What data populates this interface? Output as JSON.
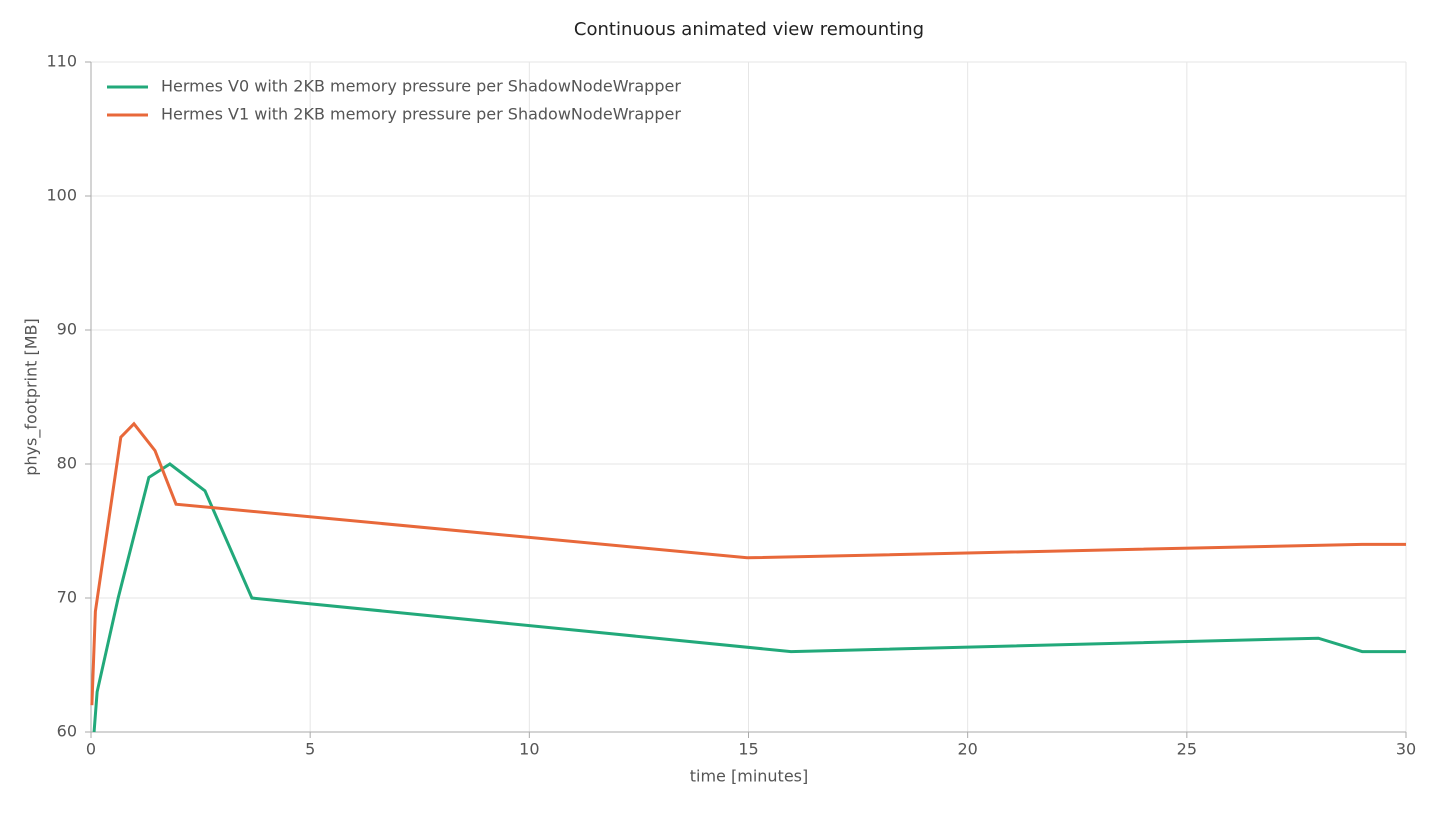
{
  "chart_data": {
    "type": "line",
    "title": "Continuous animated view remounting",
    "xlabel": "time [minutes]",
    "ylabel": "phys_footprint [MB]",
    "xlim": [
      0,
      30
    ],
    "xticks": [
      0,
      5,
      10,
      15,
      20,
      25,
      30
    ],
    "ylim": [
      60,
      110
    ],
    "yticks": [
      60,
      70,
      80,
      90,
      100,
      110
    ],
    "grid": true,
    "legend": "upper-left",
    "series": [
      {
        "name": "Hermes V0 with 2KB memory pressure per ShadowNodeWrapper",
        "color": "#22a97a",
        "x": [
          0.07,
          0.14,
          0.62,
          1.32,
          1.8,
          2.6,
          3.67,
          15.97,
          28.0,
          29.0,
          30
        ],
        "values": [
          60,
          63,
          70,
          79,
          80,
          78,
          70,
          66,
          67,
          66,
          66
        ]
      },
      {
        "name": "Hermes V1 with 2KB memory pressure per ShadowNodeWrapper",
        "color": "#e8683a",
        "x": [
          0.02,
          0.1,
          0.68,
          0.98,
          1.46,
          1.94,
          14.97,
          29.0,
          30
        ],
        "values": [
          62,
          69,
          82,
          83,
          81,
          77,
          73,
          74,
          74
        ]
      }
    ]
  }
}
